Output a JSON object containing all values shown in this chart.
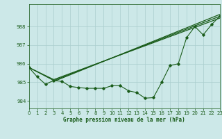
{
  "xlabel": "Graphe pression niveau de la mer (hPa)",
  "bg_color": "#cce8e8",
  "grid_color": "#aacece",
  "line_color": "#1a5c1a",
  "xlim": [
    0,
    23
  ],
  "ylim": [
    983.6,
    989.2
  ],
  "yticks": [
    984,
    985,
    986,
    987,
    988
  ],
  "xticks": [
    0,
    1,
    2,
    3,
    4,
    5,
    6,
    7,
    8,
    9,
    10,
    11,
    12,
    13,
    14,
    15,
    16,
    17,
    18,
    19,
    20,
    21,
    22,
    23
  ],
  "line1_x": [
    0,
    1,
    2,
    3,
    4,
    5,
    6,
    7,
    8,
    9,
    10,
    11,
    12,
    13,
    14,
    15,
    16,
    17,
    18,
    19,
    20,
    21,
    22,
    23
  ],
  "line1_y": [
    985.8,
    985.3,
    984.9,
    985.1,
    985.05,
    984.78,
    984.72,
    984.68,
    984.68,
    984.68,
    984.82,
    984.82,
    984.55,
    984.45,
    984.15,
    984.18,
    985.0,
    985.9,
    986.0,
    987.4,
    988.0,
    987.55,
    988.1,
    988.55
  ],
  "line2_x": [
    0,
    3,
    23
  ],
  "line2_y": [
    985.8,
    985.1,
    988.55
  ],
  "line3_x": [
    0,
    3,
    23
  ],
  "line3_y": [
    985.8,
    985.15,
    988.45
  ],
  "line4_x": [
    3,
    23
  ],
  "line4_y": [
    985.05,
    988.65
  ],
  "ylabel_fontsize": 5.5,
  "tick_fontsize": 5.0
}
